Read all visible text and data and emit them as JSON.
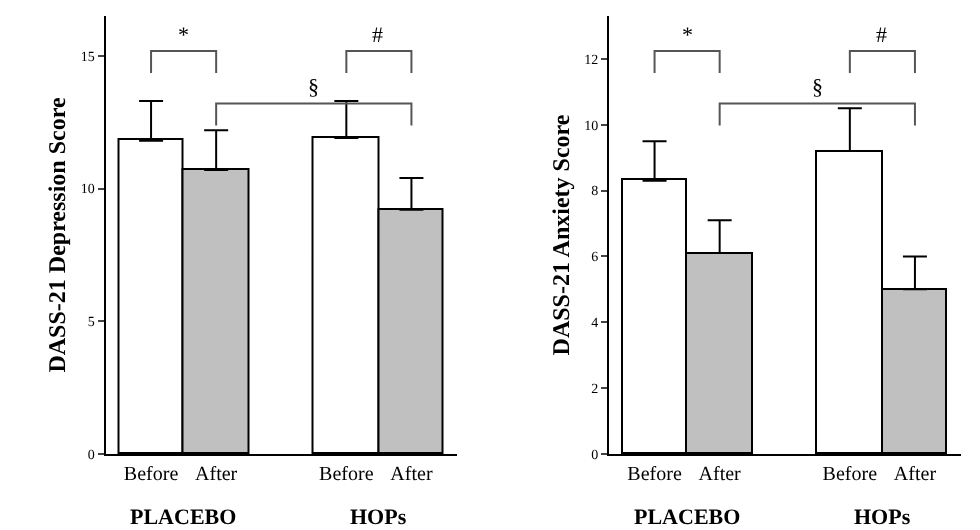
{
  "chart_data": [
    {
      "type": "bar",
      "ylabel": "DASS-21 Depression Score",
      "categories": [
        "Before",
        "After",
        null,
        "Before",
        "After"
      ],
      "values": [
        11.8,
        10.7,
        null,
        11.9,
        9.2
      ],
      "colors": [
        "#ffffff",
        "#c0c0c0",
        null,
        "#ffffff",
        "#c0c0c0"
      ],
      "errors": [
        [
          11.8,
          13.3
        ],
        [
          10.7,
          12.2
        ],
        null,
        [
          11.9,
          13.3
        ],
        [
          9.2,
          10.4
        ]
      ],
      "ylim": [
        0,
        16.5
      ],
      "yticks": [
        0,
        5,
        10,
        15
      ],
      "annotations": [
        "*",
        "#",
        "§",
        "PLACEBO",
        "HOPs"
      ]
    },
    {
      "type": "bar",
      "ylabel": "DASS-21 Anxiety Score",
      "categories": [
        "Before",
        "After",
        null,
        "Before",
        "After"
      ],
      "values": [
        8.3,
        6.1,
        null,
        9.2,
        5.0
      ],
      "colors": [
        "#ffffff",
        "#c0c0c0",
        null,
        "#ffffff",
        "#c0c0c0"
      ],
      "errors": [
        [
          8.3,
          9.5
        ],
        [
          6.1,
          7.1
        ],
        null,
        [
          9.2,
          10.5
        ],
        [
          5.0,
          6.0
        ]
      ],
      "ylim": [
        0,
        13.3
      ],
      "yticks": [
        0,
        2,
        4,
        6,
        8,
        10,
        12
      ],
      "annotations": [
        "*",
        "#",
        "§",
        "PLACEBO",
        "HOPs"
      ]
    }
  ]
}
